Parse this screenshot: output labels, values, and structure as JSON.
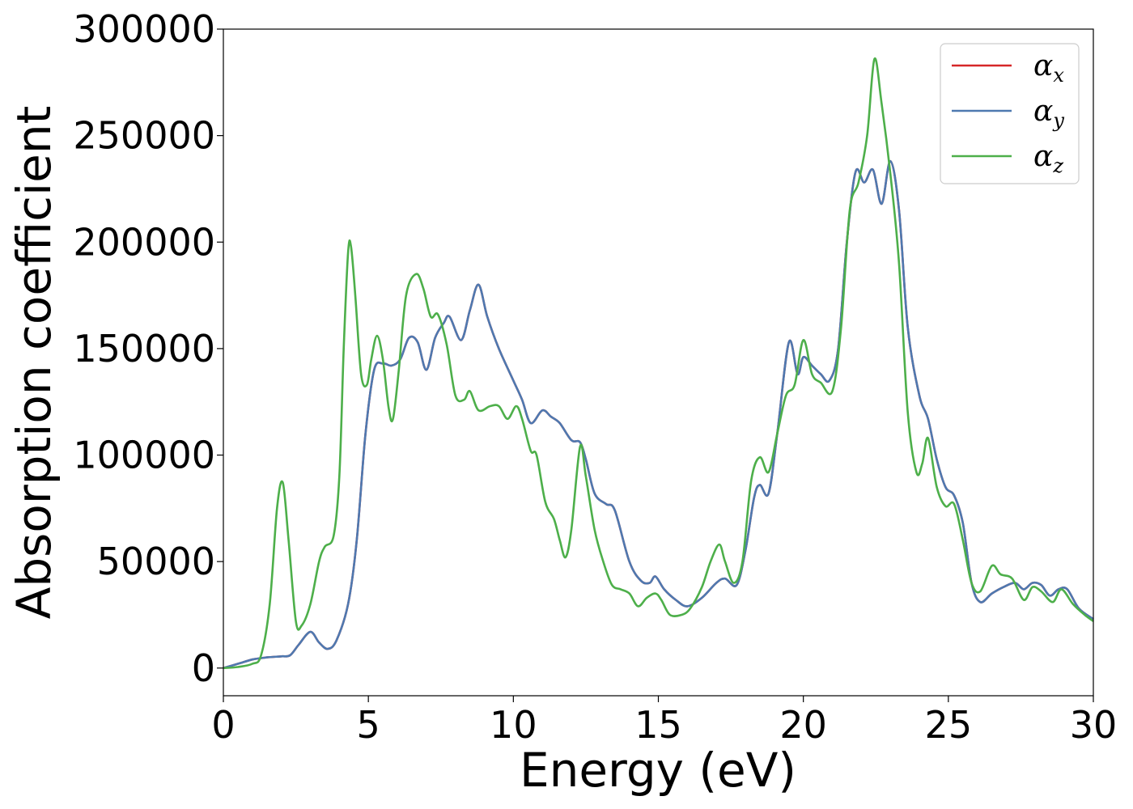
{
  "chart_data": {
    "type": "line",
    "title": "",
    "xlabel": "Energy (eV)",
    "ylabel": "Absorption coefficient",
    "xlim": [
      0,
      30
    ],
    "ylim": [
      -13000,
      300000
    ],
    "xticks": [
      0,
      5,
      10,
      15,
      20,
      25,
      30
    ],
    "xtick_labels": [
      "0",
      "5",
      "10",
      "15",
      "20",
      "25",
      "30"
    ],
    "yticks": [
      0,
      50000,
      100000,
      150000,
      200000,
      250000,
      300000
    ],
    "ytick_labels": [
      "0",
      "50000",
      "100000",
      "150000",
      "200000",
      "250000",
      "300000"
    ],
    "grid": false,
    "legend_position": "top-right",
    "series": [
      {
        "name": "α",
        "subscript": "x",
        "color": "#d62728",
        "points": [
          [
            0,
            0
          ],
          [
            0.5,
            2000
          ],
          [
            1,
            4000
          ],
          [
            1.5,
            5000
          ],
          [
            2,
            5500
          ],
          [
            2.3,
            6000
          ],
          [
            2.6,
            11000
          ],
          [
            3,
            17000
          ],
          [
            3.3,
            12000
          ],
          [
            3.6,
            9000
          ],
          [
            3.9,
            13000
          ],
          [
            4.3,
            30000
          ],
          [
            4.6,
            60000
          ],
          [
            4.9,
            110000
          ],
          [
            5.2,
            140000
          ],
          [
            5.5,
            143000
          ],
          [
            5.8,
            142000
          ],
          [
            6.1,
            145000
          ],
          [
            6.4,
            155000
          ],
          [
            6.7,
            153000
          ],
          [
            7,
            140000
          ],
          [
            7.3,
            155000
          ],
          [
            7.6,
            162000
          ],
          [
            7.8,
            165000
          ],
          [
            8.2,
            154000
          ],
          [
            8.5,
            168000
          ],
          [
            8.8,
            180000
          ],
          [
            9.1,
            165000
          ],
          [
            9.5,
            150000
          ],
          [
            10,
            135000
          ],
          [
            10.3,
            126000
          ],
          [
            10.6,
            115000
          ],
          [
            11,
            121000
          ],
          [
            11.3,
            118000
          ],
          [
            11.6,
            115000
          ],
          [
            12,
            107000
          ],
          [
            12.3,
            106000
          ],
          [
            12.5,
            98000
          ],
          [
            12.8,
            82000
          ],
          [
            13.2,
            77000
          ],
          [
            13.5,
            74000
          ],
          [
            14,
            50000
          ],
          [
            14.4,
            41000
          ],
          [
            14.7,
            40000
          ],
          [
            14.9,
            43000
          ],
          [
            15.2,
            37000
          ],
          [
            15.6,
            32000
          ],
          [
            16,
            29000
          ],
          [
            16.5,
            33000
          ],
          [
            17,
            40000
          ],
          [
            17.3,
            42000
          ],
          [
            17.7,
            39000
          ],
          [
            18,
            55000
          ],
          [
            18.3,
            80000
          ],
          [
            18.5,
            86000
          ],
          [
            18.8,
            82000
          ],
          [
            19.1,
            110000
          ],
          [
            19.5,
            153000
          ],
          [
            19.8,
            138000
          ],
          [
            20,
            146000
          ],
          [
            20.3,
            142000
          ],
          [
            20.6,
            138000
          ],
          [
            20.9,
            135000
          ],
          [
            21.2,
            150000
          ],
          [
            21.5,
            200000
          ],
          [
            21.8,
            233000
          ],
          [
            22.1,
            228000
          ],
          [
            22.4,
            234000
          ],
          [
            22.7,
            218000
          ],
          [
            23,
            238000
          ],
          [
            23.3,
            215000
          ],
          [
            23.6,
            160000
          ],
          [
            24,
            128000
          ],
          [
            24.3,
            117000
          ],
          [
            24.6,
            98000
          ],
          [
            24.9,
            85000
          ],
          [
            25.2,
            81000
          ],
          [
            25.5,
            68000
          ],
          [
            25.8,
            40000
          ],
          [
            26.1,
            31000
          ],
          [
            26.5,
            35000
          ],
          [
            26.9,
            38000
          ],
          [
            27.3,
            40000
          ],
          [
            27.6,
            37000
          ],
          [
            27.9,
            40000
          ],
          [
            28.2,
            39000
          ],
          [
            28.5,
            34000
          ],
          [
            28.8,
            37000
          ],
          [
            29.1,
            37000
          ],
          [
            29.5,
            28000
          ],
          [
            30,
            23000
          ]
        ]
      },
      {
        "name": "α",
        "subscript": "y",
        "color": "#4e79b0",
        "points": [
          [
            0,
            0
          ],
          [
            0.5,
            2000
          ],
          [
            1,
            4000
          ],
          [
            1.5,
            5000
          ],
          [
            2,
            5500
          ],
          [
            2.3,
            6000
          ],
          [
            2.6,
            11000
          ],
          [
            3,
            17000
          ],
          [
            3.3,
            12000
          ],
          [
            3.6,
            9000
          ],
          [
            3.9,
            13000
          ],
          [
            4.3,
            30000
          ],
          [
            4.6,
            60000
          ],
          [
            4.9,
            110000
          ],
          [
            5.2,
            140000
          ],
          [
            5.5,
            143000
          ],
          [
            5.8,
            142000
          ],
          [
            6.1,
            145000
          ],
          [
            6.4,
            155000
          ],
          [
            6.7,
            153000
          ],
          [
            7,
            140000
          ],
          [
            7.3,
            155000
          ],
          [
            7.6,
            162000
          ],
          [
            7.8,
            165000
          ],
          [
            8.2,
            154000
          ],
          [
            8.5,
            168000
          ],
          [
            8.8,
            180000
          ],
          [
            9.1,
            165000
          ],
          [
            9.5,
            150000
          ],
          [
            10,
            135000
          ],
          [
            10.3,
            126000
          ],
          [
            10.6,
            115000
          ],
          [
            11,
            121000
          ],
          [
            11.3,
            118000
          ],
          [
            11.6,
            115000
          ],
          [
            12,
            107000
          ],
          [
            12.3,
            106000
          ],
          [
            12.5,
            98000
          ],
          [
            12.8,
            82000
          ],
          [
            13.2,
            77000
          ],
          [
            13.5,
            74000
          ],
          [
            14,
            50000
          ],
          [
            14.4,
            41000
          ],
          [
            14.7,
            40000
          ],
          [
            14.9,
            43000
          ],
          [
            15.2,
            37000
          ],
          [
            15.6,
            32000
          ],
          [
            16,
            29000
          ],
          [
            16.5,
            33000
          ],
          [
            17,
            40000
          ],
          [
            17.3,
            42000
          ],
          [
            17.7,
            39000
          ],
          [
            18,
            55000
          ],
          [
            18.3,
            80000
          ],
          [
            18.5,
            86000
          ],
          [
            18.8,
            82000
          ],
          [
            19.1,
            110000
          ],
          [
            19.5,
            153000
          ],
          [
            19.8,
            138000
          ],
          [
            20,
            146000
          ],
          [
            20.3,
            142000
          ],
          [
            20.6,
            138000
          ],
          [
            20.9,
            135000
          ],
          [
            21.2,
            150000
          ],
          [
            21.5,
            200000
          ],
          [
            21.8,
            233000
          ],
          [
            22.1,
            228000
          ],
          [
            22.4,
            234000
          ],
          [
            22.7,
            218000
          ],
          [
            23,
            238000
          ],
          [
            23.3,
            215000
          ],
          [
            23.6,
            160000
          ],
          [
            24,
            128000
          ],
          [
            24.3,
            117000
          ],
          [
            24.6,
            98000
          ],
          [
            24.9,
            85000
          ],
          [
            25.2,
            81000
          ],
          [
            25.5,
            68000
          ],
          [
            25.8,
            40000
          ],
          [
            26.1,
            31000
          ],
          [
            26.5,
            35000
          ],
          [
            26.9,
            38000
          ],
          [
            27.3,
            40000
          ],
          [
            27.6,
            37000
          ],
          [
            27.9,
            40000
          ],
          [
            28.2,
            39000
          ],
          [
            28.5,
            34000
          ],
          [
            28.8,
            37000
          ],
          [
            29.1,
            37000
          ],
          [
            29.5,
            28000
          ],
          [
            30,
            23000
          ]
        ]
      },
      {
        "name": "α",
        "subscript": "z",
        "color": "#4daf4a",
        "points": [
          [
            0,
            0
          ],
          [
            0.5,
            500
          ],
          [
            1,
            2000
          ],
          [
            1.3,
            6000
          ],
          [
            1.6,
            30000
          ],
          [
            1.85,
            75000
          ],
          [
            2.05,
            87000
          ],
          [
            2.25,
            60000
          ],
          [
            2.5,
            22000
          ],
          [
            2.7,
            20000
          ],
          [
            3,
            30000
          ],
          [
            3.3,
            50000
          ],
          [
            3.5,
            57000
          ],
          [
            3.8,
            62000
          ],
          [
            4,
            90000
          ],
          [
            4.15,
            150000
          ],
          [
            4.3,
            195000
          ],
          [
            4.4,
            198000
          ],
          [
            4.55,
            175000
          ],
          [
            4.75,
            138000
          ],
          [
            4.95,
            133000
          ],
          [
            5.1,
            145000
          ],
          [
            5.3,
            156000
          ],
          [
            5.5,
            145000
          ],
          [
            5.7,
            122000
          ],
          [
            5.85,
            117000
          ],
          [
            6.05,
            140000
          ],
          [
            6.3,
            175000
          ],
          [
            6.65,
            185000
          ],
          [
            6.9,
            178000
          ],
          [
            7.15,
            165000
          ],
          [
            7.4,
            166000
          ],
          [
            7.7,
            152000
          ],
          [
            8,
            128000
          ],
          [
            8.3,
            126000
          ],
          [
            8.5,
            130000
          ],
          [
            8.8,
            121000
          ],
          [
            9.2,
            123000
          ],
          [
            9.5,
            123000
          ],
          [
            9.8,
            117000
          ],
          [
            10.1,
            123000
          ],
          [
            10.3,
            117000
          ],
          [
            10.6,
            102000
          ],
          [
            10.8,
            100000
          ],
          [
            11.1,
            78000
          ],
          [
            11.4,
            70000
          ],
          [
            11.6,
            60000
          ],
          [
            11.8,
            52000
          ],
          [
            12,
            65000
          ],
          [
            12.3,
            104000
          ],
          [
            12.5,
            90000
          ],
          [
            12.8,
            65000
          ],
          [
            13.1,
            50000
          ],
          [
            13.4,
            39000
          ],
          [
            13.7,
            37000
          ],
          [
            14,
            35000
          ],
          [
            14.3,
            29000
          ],
          [
            14.6,
            33000
          ],
          [
            14.9,
            35000
          ],
          [
            15.1,
            32000
          ],
          [
            15.4,
            25000
          ],
          [
            15.8,
            25000
          ],
          [
            16.1,
            28000
          ],
          [
            16.5,
            38000
          ],
          [
            16.8,
            50000
          ],
          [
            17.1,
            58000
          ],
          [
            17.3,
            50000
          ],
          [
            17.6,
            40000
          ],
          [
            17.9,
            50000
          ],
          [
            18.2,
            88000
          ],
          [
            18.5,
            99000
          ],
          [
            18.8,
            92000
          ],
          [
            19.1,
            110000
          ],
          [
            19.4,
            128000
          ],
          [
            19.7,
            133000
          ],
          [
            20,
            154000
          ],
          [
            20.3,
            138000
          ],
          [
            20.6,
            134000
          ],
          [
            21,
            130000
          ],
          [
            21.3,
            160000
          ],
          [
            21.6,
            215000
          ],
          [
            21.9,
            228000
          ],
          [
            22.2,
            250000
          ],
          [
            22.45,
            286000
          ],
          [
            22.7,
            265000
          ],
          [
            23,
            232000
          ],
          [
            23.3,
            190000
          ],
          [
            23.6,
            120000
          ],
          [
            23.9,
            92000
          ],
          [
            24.1,
            96000
          ],
          [
            24.3,
            108000
          ],
          [
            24.6,
            85000
          ],
          [
            24.9,
            76000
          ],
          [
            25.2,
            77000
          ],
          [
            25.5,
            60000
          ],
          [
            25.8,
            40000
          ],
          [
            26.1,
            36000
          ],
          [
            26.5,
            48000
          ],
          [
            26.8,
            44000
          ],
          [
            27.2,
            42000
          ],
          [
            27.6,
            32000
          ],
          [
            27.9,
            38000
          ],
          [
            28.2,
            36000
          ],
          [
            28.6,
            31000
          ],
          [
            28.9,
            37000
          ],
          [
            29.3,
            30000
          ],
          [
            29.7,
            25000
          ],
          [
            30,
            22000
          ]
        ]
      }
    ]
  }
}
